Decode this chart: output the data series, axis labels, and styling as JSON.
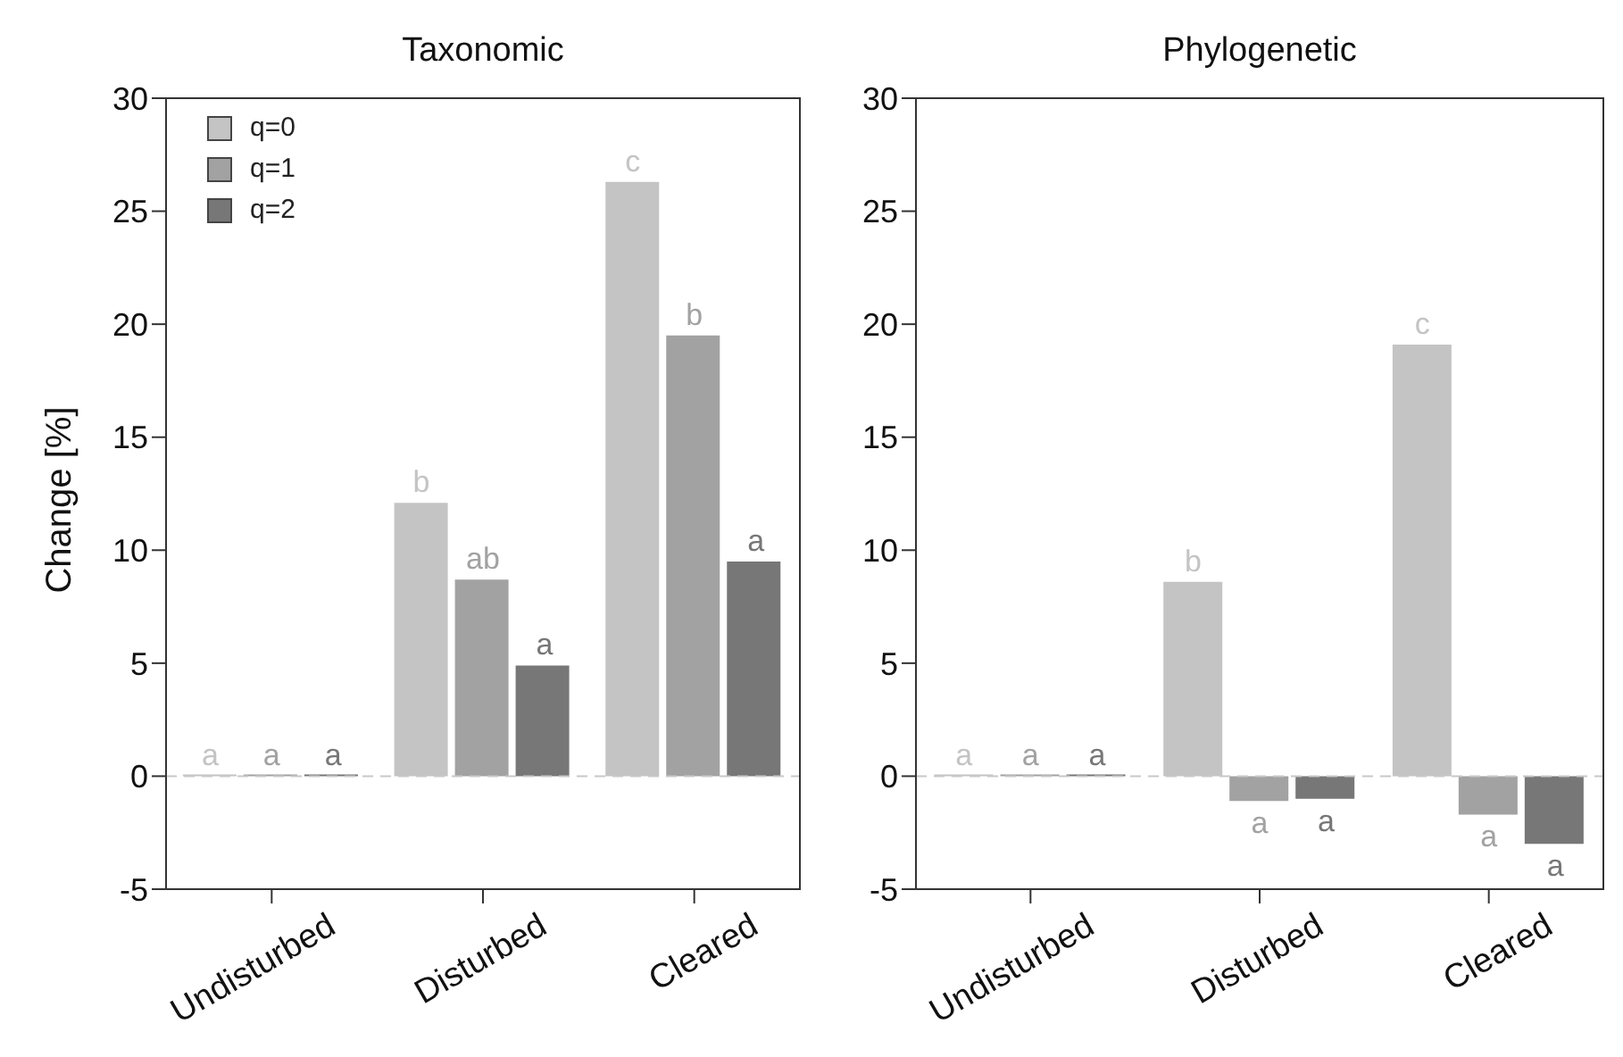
{
  "chart_data": [
    {
      "type": "bar",
      "title": "Taxonomic",
      "ylabel": "Change [%]",
      "categories": [
        "Undisturbed",
        "Disturbed",
        "Cleared"
      ],
      "series": [
        {
          "name": "q=0",
          "color": "#c4c4c4",
          "values": [
            0,
            12.1,
            26.3
          ],
          "value_labels": [
            "a",
            "b",
            "c"
          ]
        },
        {
          "name": "q=1",
          "color": "#a2a2a2",
          "values": [
            0,
            8.7,
            19.5
          ],
          "value_labels": [
            "a",
            "ab",
            "b"
          ]
        },
        {
          "name": "q=2",
          "color": "#777777",
          "values": [
            0,
            4.9,
            9.5
          ],
          "value_labels": [
            "a",
            "a",
            "a"
          ]
        }
      ],
      "ylim": [
        -5,
        30
      ],
      "yticks": [
        -5,
        0,
        5,
        10,
        15,
        20,
        25,
        30
      ],
      "legend": "top left",
      "grid": false,
      "ref_lines": [
        {
          "axis": "y",
          "value": 0,
          "color": "#c8c8c8",
          "line_style": "dashed"
        }
      ]
    },
    {
      "type": "bar",
      "title": "Phylogenetic",
      "categories": [
        "Undisturbed",
        "Disturbed",
        "Cleared"
      ],
      "series": [
        {
          "color": "#c4c4c4",
          "values": [
            0,
            8.6,
            19.1
          ],
          "value_labels": [
            "a",
            "b",
            "c"
          ]
        },
        {
          "color": "#a2a2a2",
          "values": [
            0,
            -1.1,
            -1.7
          ],
          "value_labels": [
            "a",
            "a",
            "a"
          ]
        },
        {
          "color": "#777777",
          "values": [
            0,
            -1.0,
            -3.0
          ],
          "value_labels": [
            "a",
            "a",
            "a"
          ]
        }
      ],
      "ylim": [
        -5,
        30
      ],
      "yticks": [
        -5,
        0,
        5,
        10,
        15,
        20,
        25,
        30
      ],
      "legend": false,
      "grid": false,
      "ref_lines": [
        {
          "axis": "y",
          "value": 0,
          "color": "#c8c8c8",
          "line_style": "dashed"
        }
      ]
    }
  ]
}
